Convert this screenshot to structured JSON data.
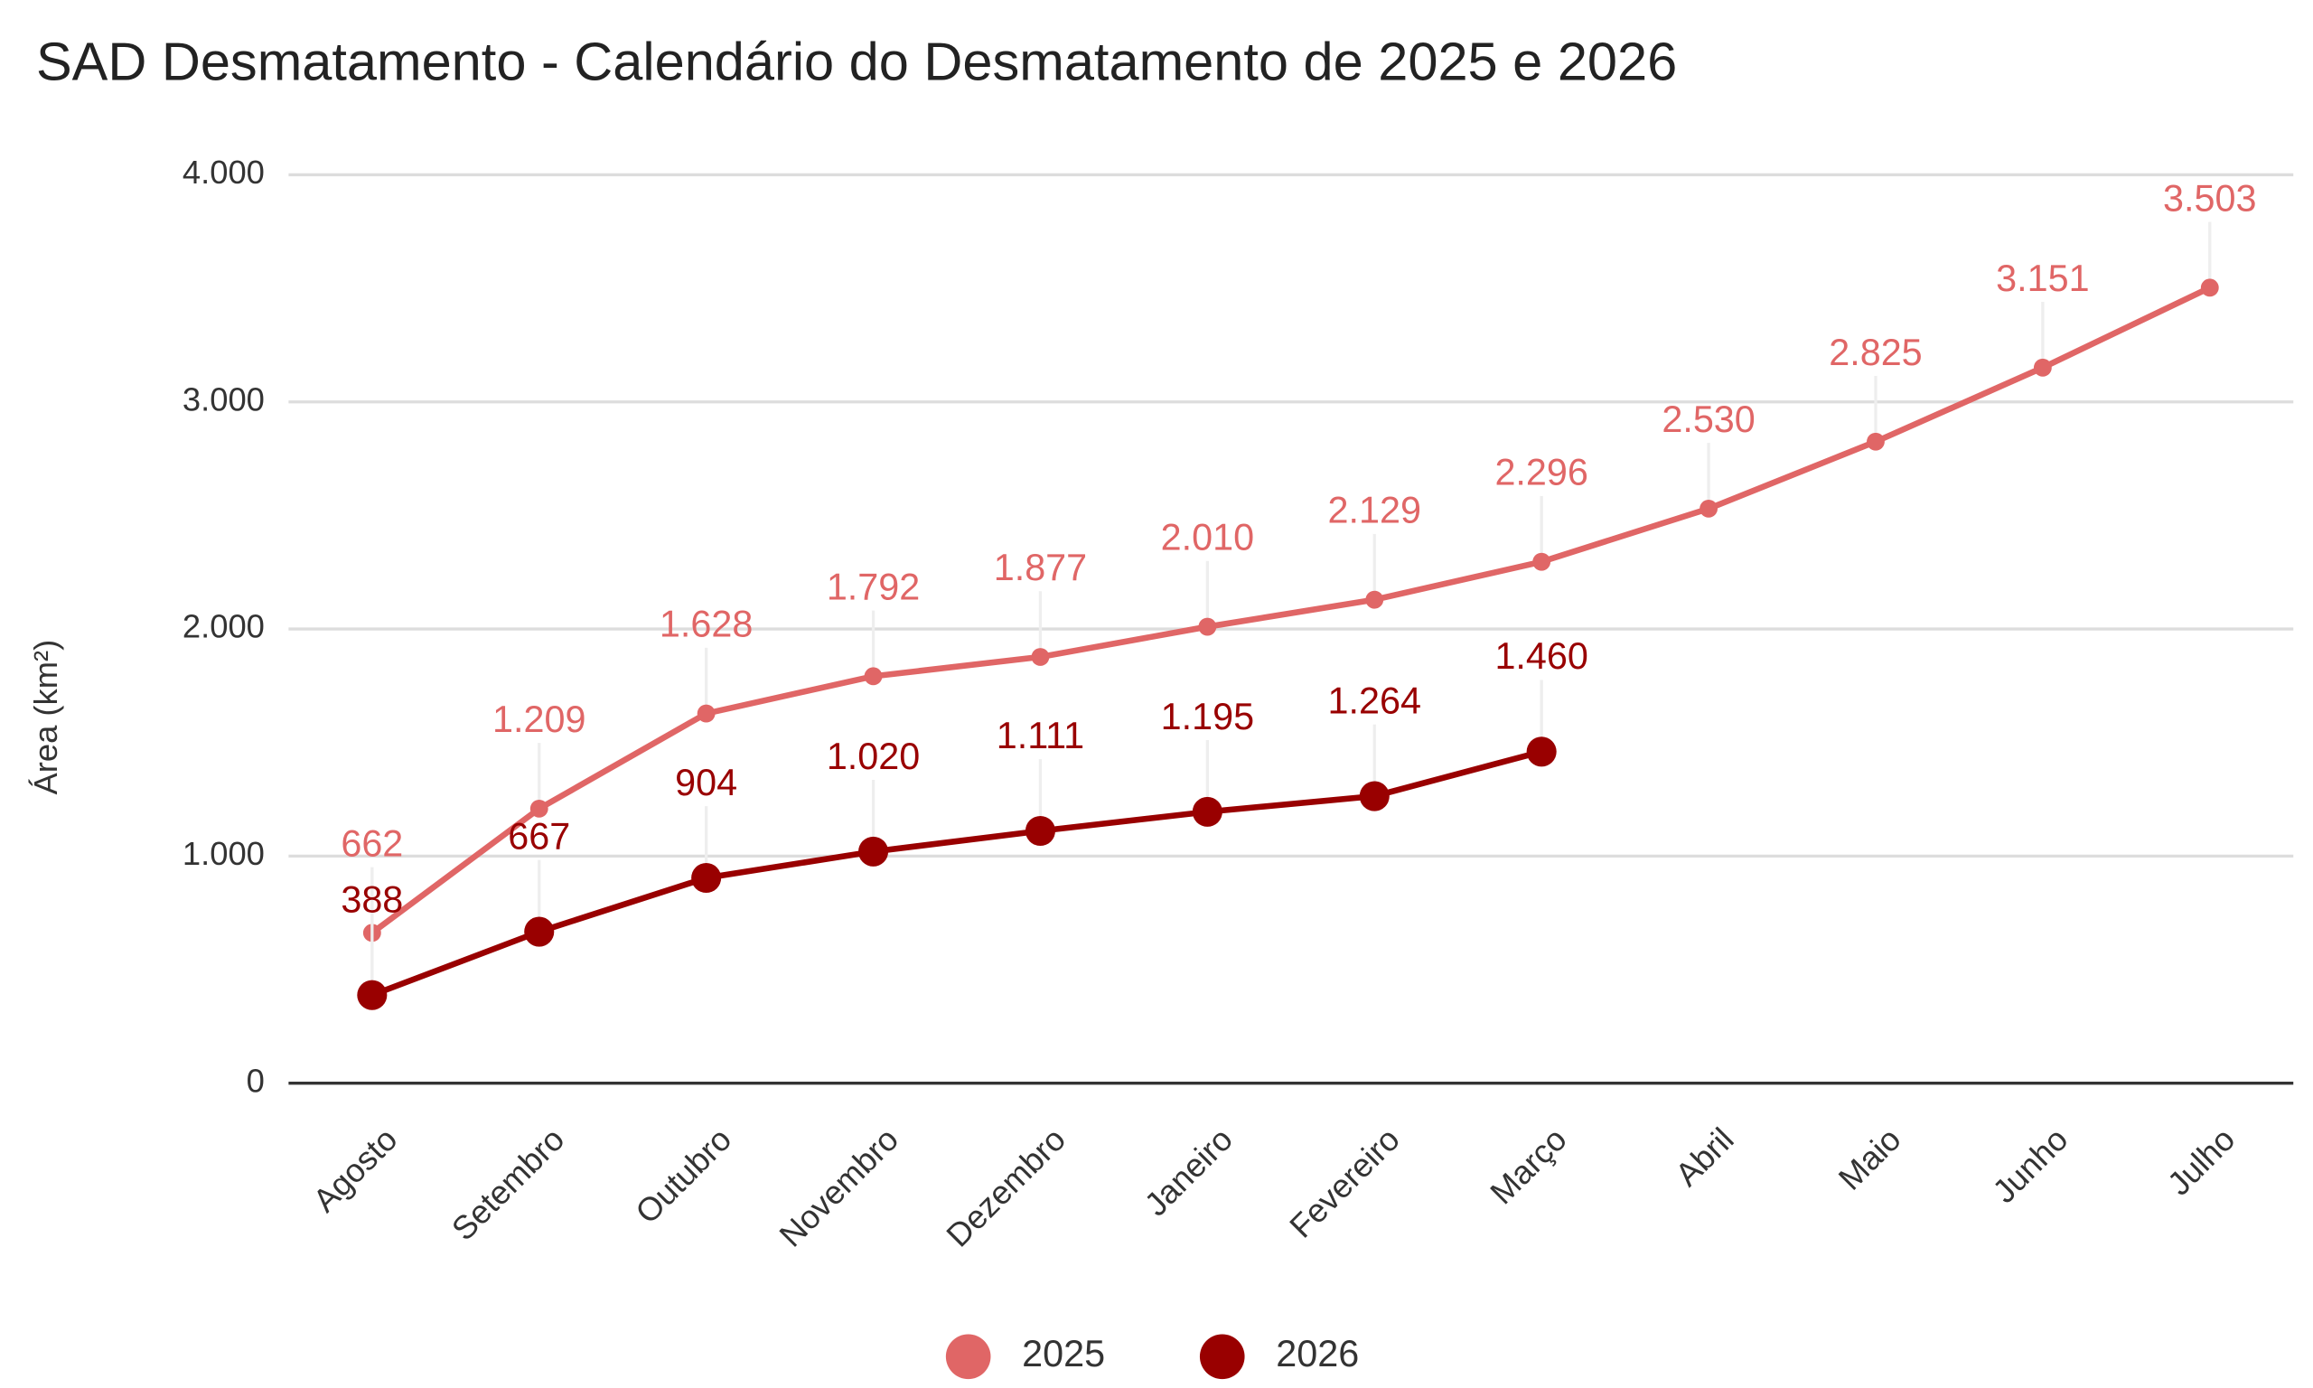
{
  "chart_data": {
    "type": "line",
    "title": "SAD Desmatamento - Calendário do Desmatamento de 2025 e 2026",
    "y_label": "Área (km²)",
    "categories": [
      "Agosto",
      "Setembro",
      "Outubro",
      "Novembro",
      "Dezembro",
      "Janeiro",
      "Fevereiro",
      "Março",
      "Abril",
      "Maio",
      "Junho",
      "Julho"
    ],
    "series": [
      {
        "name": "2025",
        "color": "#e06666",
        "values": [
          662,
          1209,
          1628,
          1792,
          1877,
          2010,
          2129,
          2296,
          2530,
          2825,
          3151,
          3503
        ],
        "value_labels": [
          "662",
          "1.209",
          "1.628",
          "1.792",
          "1.877",
          "2.010",
          "2.129",
          "2.296",
          "2.530",
          "2.825",
          "3.151",
          "3.503"
        ]
      },
      {
        "name": "2026",
        "color": "#990000",
        "values": [
          388,
          667,
          904,
          1020,
          1111,
          1195,
          1264,
          1460,
          null,
          null,
          null,
          null
        ],
        "value_labels": [
          "388",
          "667",
          "904",
          "1.020",
          "1.111",
          "1.195",
          "1.264",
          "1.460",
          null,
          null,
          null,
          null
        ]
      }
    ],
    "ylim": [
      0,
      4000
    ],
    "yticks": [
      0,
      {
        "value": 1000,
        "label": "1.000"
      },
      {
        "value": 2000,
        "label": "2.000"
      },
      {
        "value": 3000,
        "label": "3.000"
      },
      {
        "value": 4000,
        "label": "4.000"
      }
    ],
    "grid": true,
    "legend": "bottom"
  }
}
